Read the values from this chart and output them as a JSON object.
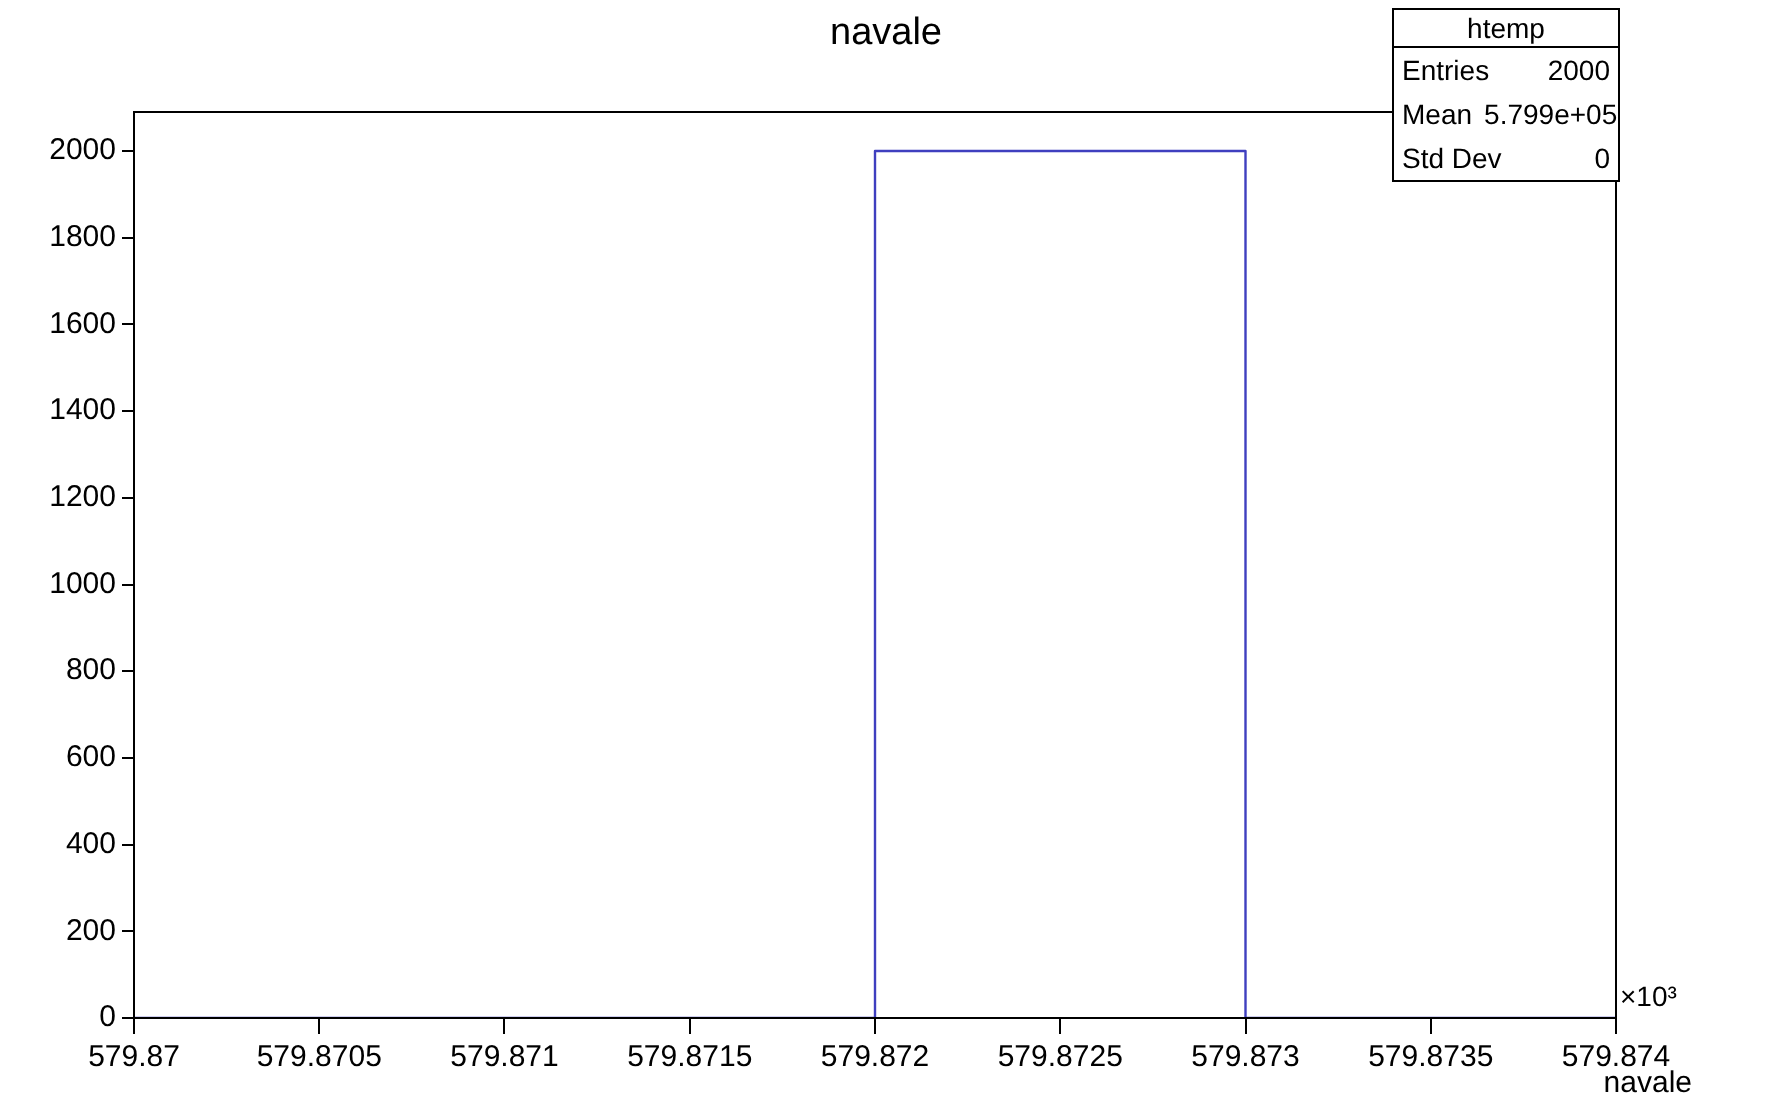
{
  "chart_data": {
    "type": "histogram",
    "title": "navale",
    "xlabel": "navale",
    "bins": [
      579.87,
      579.872,
      579.873,
      579.874
    ],
    "values": [
      0,
      2000,
      0
    ],
    "color": "#3f3fbf",
    "xlim": [
      579.87,
      579.874
    ],
    "xticks": [
      579.87,
      579.8705,
      579.871,
      579.8715,
      579.872,
      579.8725,
      579.873,
      579.8735,
      579.874
    ],
    "ylim": [
      0,
      2090
    ],
    "yticks": [
      0,
      200,
      400,
      600,
      800,
      1000,
      1200,
      1400,
      1600,
      1800,
      2000
    ],
    "grid": false,
    "legend": false,
    "annotations": [
      "htemp",
      "Entries",
      "2000",
      "Mean",
      "5.799e+05",
      "Std Dev",
      "0",
      "×10³"
    ]
  }
}
